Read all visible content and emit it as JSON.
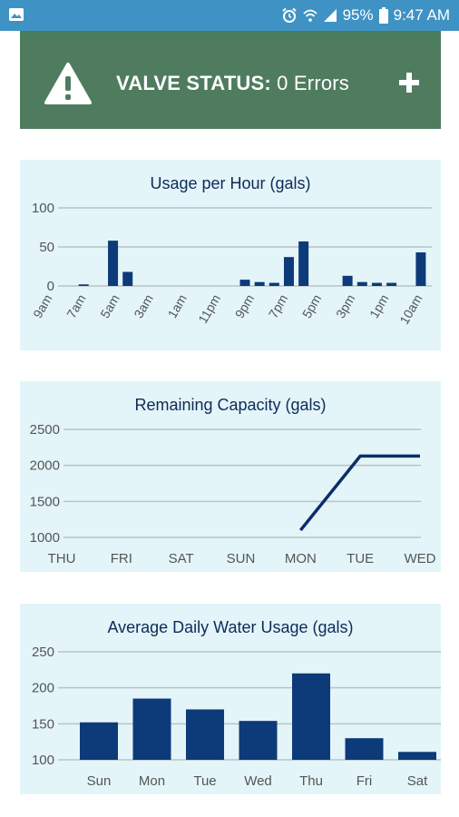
{
  "status_bar": {
    "battery": "95%",
    "time": "9:47 AM",
    "icons": [
      "gallery-icon",
      "alarm-icon",
      "wifi-icon",
      "signal-icon",
      "battery-icon"
    ]
  },
  "valve": {
    "label": "VALVE STATUS:",
    "value": " 0 Errors",
    "icons": [
      "warning-icon",
      "plus-icon"
    ]
  },
  "colors": {
    "bar": "#0d3a78",
    "line": "#0d2d6b",
    "grid": "#b8c4c8",
    "axis_text": "#555555",
    "card_bg": "#e3f5f8",
    "valve_bg": "#4f7c5f"
  },
  "chart_data": [
    {
      "type": "bar",
      "title": "Usage per Hour (gals)",
      "ylim": [
        0,
        100
      ],
      "yticks": [
        0,
        50,
        100
      ],
      "grid": true,
      "tick_labels": [
        "9am",
        "7am",
        "5am",
        "3am",
        "1am",
        "11pm",
        "9pm",
        "7pm",
        "5pm",
        "3pm",
        "1pm",
        "10am"
      ],
      "values": [
        0,
        2,
        0,
        58,
        18,
        0,
        0,
        0,
        0,
        0,
        0,
        0,
        8,
        5,
        4,
        37,
        57,
        0,
        0,
        13,
        5,
        4,
        4,
        0,
        43
      ]
    },
    {
      "type": "line",
      "title": "Remaining Capacity (gals)",
      "categories": [
        "THU",
        "FRI",
        "SAT",
        "SUN",
        "MON",
        "TUE",
        "WED"
      ],
      "ylim": [
        1000,
        2500
      ],
      "yticks": [
        1000,
        1500,
        2000,
        2500
      ],
      "grid": true,
      "points": [
        {
          "x": "MON",
          "y": 1100
        },
        {
          "x": "TUE",
          "y": 2130
        },
        {
          "x": "WED",
          "y": 2130
        }
      ]
    },
    {
      "type": "bar",
      "title": "Average Daily Water Usage (gals)",
      "categories": [
        "Sun",
        "Mon",
        "Tue",
        "Wed",
        "Thu",
        "Fri",
        "Sat"
      ],
      "ylim": [
        100,
        250
      ],
      "yticks": [
        100,
        150,
        200,
        250
      ],
      "grid": true,
      "values": [
        152,
        185,
        170,
        154,
        220,
        130,
        111
      ]
    }
  ]
}
